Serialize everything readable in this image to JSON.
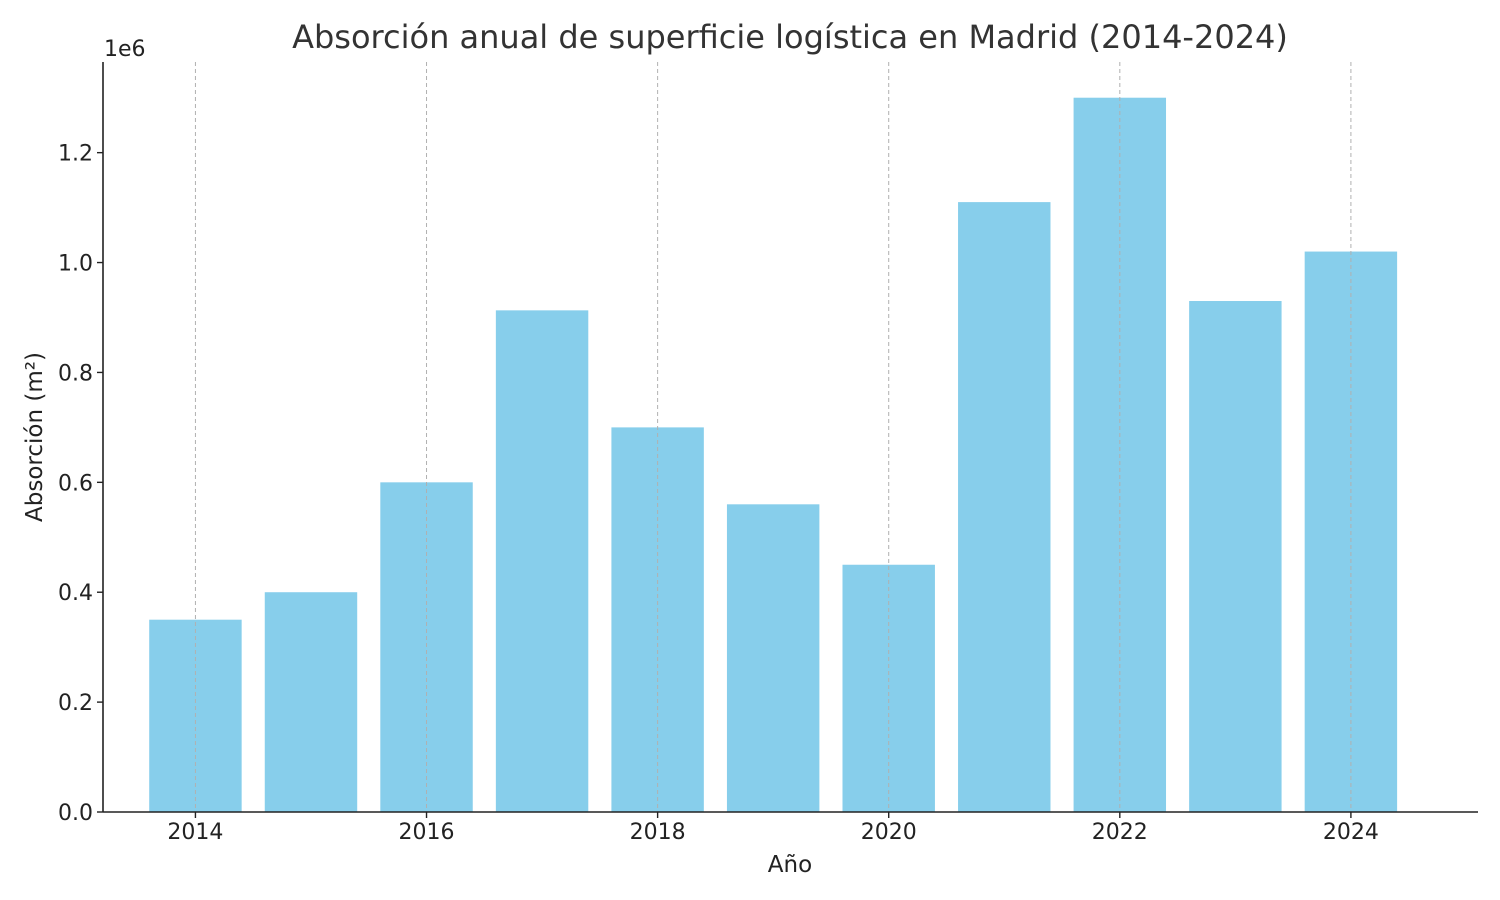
{
  "chart_data": {
    "type": "bar",
    "title": "Absorción anual de superficie logística en Madrid (2014-2024)",
    "xlabel": "Año",
    "ylabel": "Absorción (m²)",
    "y_offset_label": "1e6",
    "categories": [
      2014,
      2015,
      2016,
      2017,
      2018,
      2019,
      2020,
      2021,
      2022,
      2023,
      2024
    ],
    "values": [
      350000,
      400000,
      600000,
      913000,
      700000,
      560000,
      450000,
      1110000,
      1300000,
      930000,
      1020000
    ],
    "x_ticks": [
      2014,
      2016,
      2018,
      2020,
      2022,
      2024
    ],
    "y_ticks": [
      0.0,
      0.2,
      0.4,
      0.6,
      0.8,
      1.0,
      1.2
    ],
    "y_tick_labels": [
      "0.0",
      "0.2",
      "0.4",
      "0.6",
      "0.8",
      "1.0",
      "1.2"
    ],
    "ylim": [
      0,
      1365000
    ],
    "y_scale": 1000000,
    "grid": "x-dashed",
    "bar_color": "#87CEEB"
  }
}
